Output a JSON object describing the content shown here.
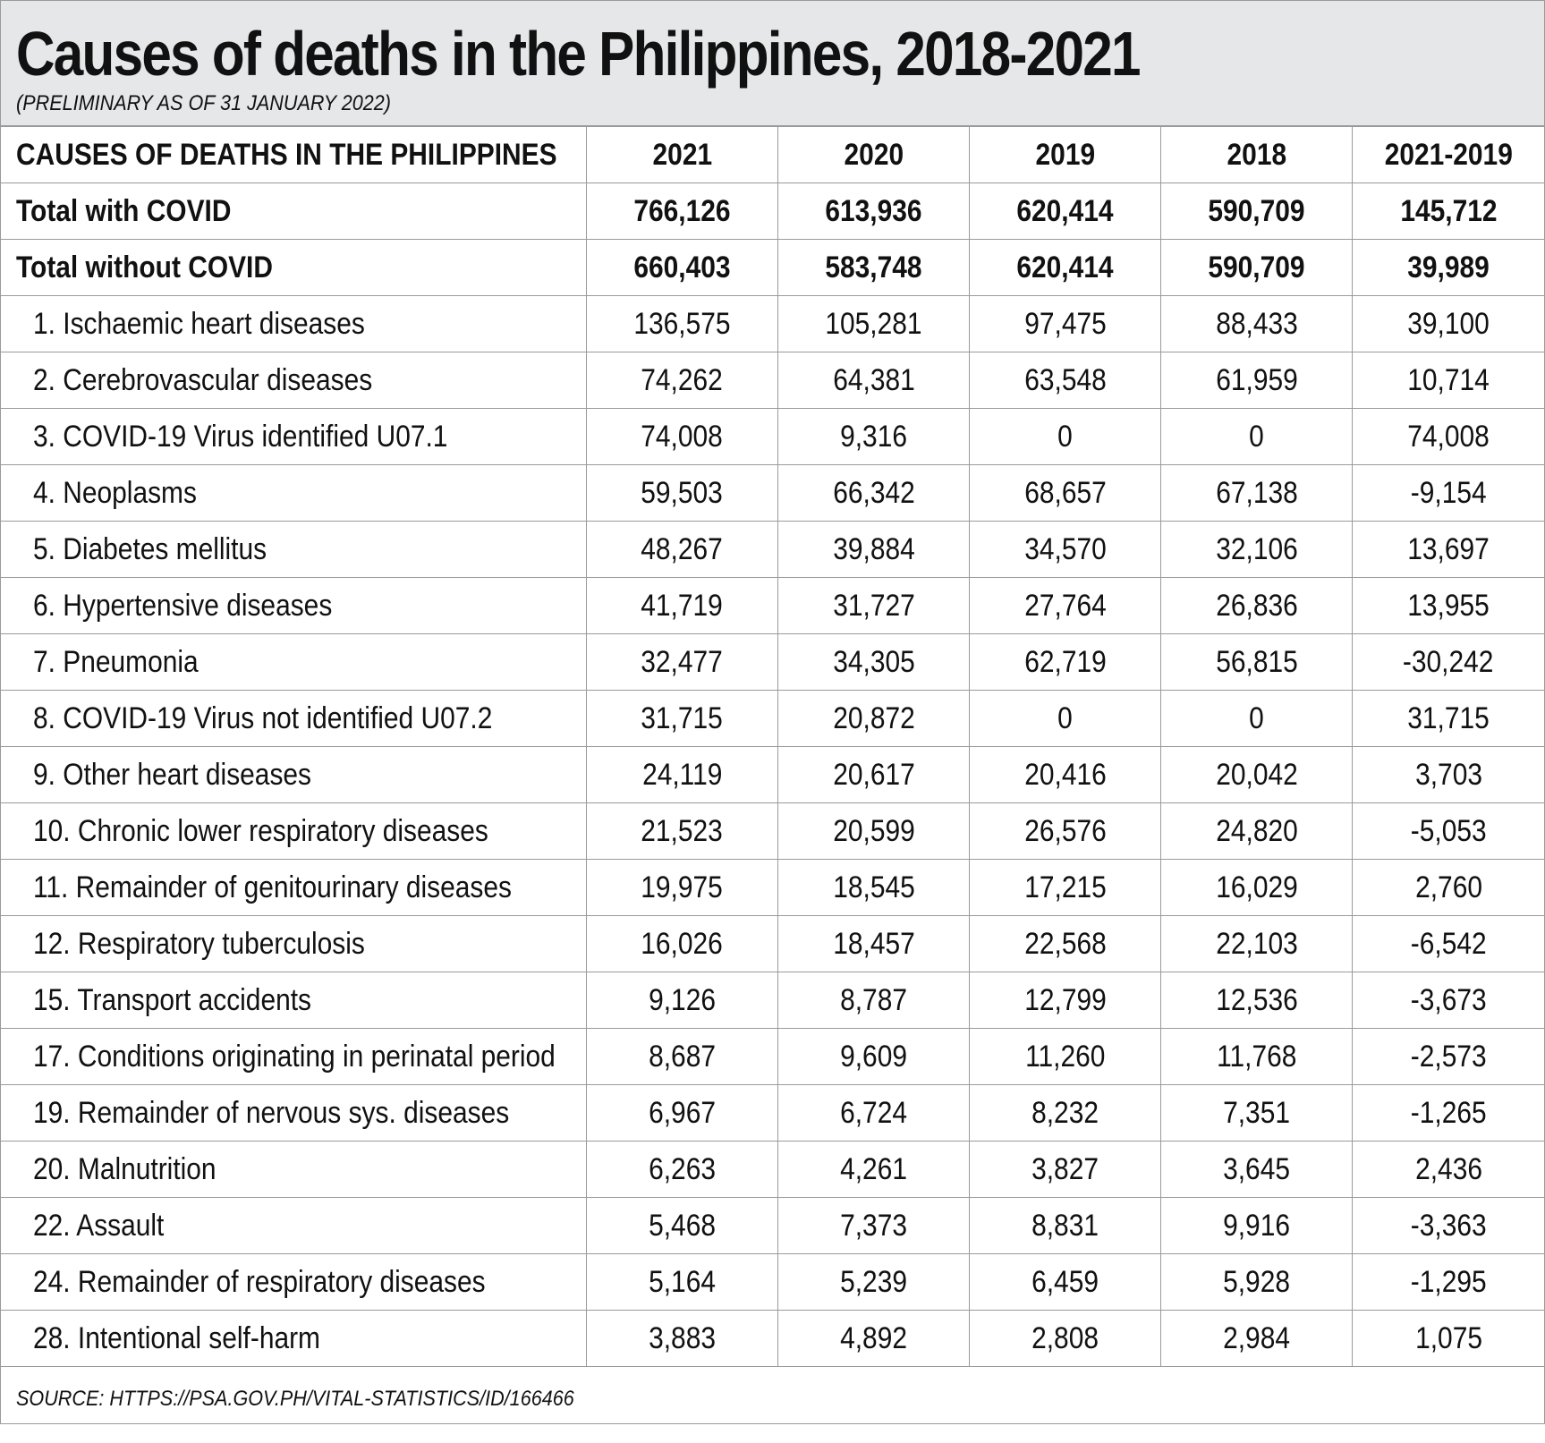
{
  "chart_data": {
    "type": "table",
    "title": "Causes of deaths in the Philippines, 2018-2021",
    "subtitle": "(PRELIMINARY AS OF 31 JANUARY 2022)",
    "columns": [
      "CAUSES OF DEATHS IN THE PHILIPPINES",
      "2021",
      "2020",
      "2019",
      "2018",
      "2021-2019"
    ],
    "totals": [
      [
        "Total with COVID",
        "766,126",
        "613,936",
        "620,414",
        "590,709",
        "145,712"
      ],
      [
        "Total without COVID",
        "660,403",
        "583,748",
        "620,414",
        "590,709",
        "39,989"
      ]
    ],
    "rows": [
      [
        "1. Ischaemic heart diseases",
        "136,575",
        "105,281",
        "97,475",
        "88,433",
        "39,100"
      ],
      [
        "2. Cerebrovascular diseases",
        "74,262",
        "64,381",
        "63,548",
        "61,959",
        "10,714"
      ],
      [
        "3. COVID-19 Virus identified U07.1",
        "74,008",
        "9,316",
        "0",
        "0",
        "74,008"
      ],
      [
        "4. Neoplasms",
        "59,503",
        "66,342",
        "68,657",
        "67,138",
        "-9,154"
      ],
      [
        "5. Diabetes mellitus",
        "48,267",
        "39,884",
        "34,570",
        "32,106",
        "13,697"
      ],
      [
        "6. Hypertensive diseases",
        "41,719",
        "31,727",
        "27,764",
        "26,836",
        "13,955"
      ],
      [
        "7. Pneumonia",
        "32,477",
        "34,305",
        "62,719",
        "56,815",
        "-30,242"
      ],
      [
        "8. COVID-19 Virus not identified U07.2",
        "31,715",
        "20,872",
        "0",
        "0",
        "31,715"
      ],
      [
        "9. Other heart diseases",
        "24,119",
        "20,617",
        "20,416",
        "20,042",
        "3,703"
      ],
      [
        "10. Chronic lower respiratory diseases",
        "21,523",
        "20,599",
        "26,576",
        "24,820",
        "-5,053"
      ],
      [
        "11. Remainder of genitourinary diseases",
        "19,975",
        "18,545",
        "17,215",
        "16,029",
        "2,760"
      ],
      [
        "12. Respiratory tuberculosis",
        "16,026",
        "18,457",
        "22,568",
        "22,103",
        "-6,542"
      ],
      [
        "15. Transport accidents",
        "9,126",
        "8,787",
        "12,799",
        "12,536",
        "-3,673"
      ],
      [
        "17. Conditions originating in perinatal period",
        "8,687",
        "9,609",
        "11,260",
        "11,768",
        "-2,573"
      ],
      [
        "19. Remainder of nervous sys. diseases",
        "6,967",
        "6,724",
        "8,232",
        "7,351",
        "-1,265"
      ],
      [
        "20. Malnutrition",
        "6,263",
        "4,261",
        "3,827",
        "3,645",
        "2,436"
      ],
      [
        "22. Assault",
        "5,468",
        "7,373",
        "8,831",
        "9,916",
        "-3,363"
      ],
      [
        "24. Remainder of respiratory diseases",
        "5,164",
        "5,239",
        "6,459",
        "5,928",
        "-1,295"
      ],
      [
        "28. Intentional self-harm",
        "3,883",
        "4,892",
        "2,808",
        "2,984",
        "1,075"
      ]
    ],
    "source": "SOURCE: HTTPS://PSA.GOV.PH/VITAL-STATISTICS/ID/166466",
    "colors": {
      "header_bg": "#e6e7e8",
      "grid": "#9a9a9a",
      "text": "#111111"
    }
  }
}
